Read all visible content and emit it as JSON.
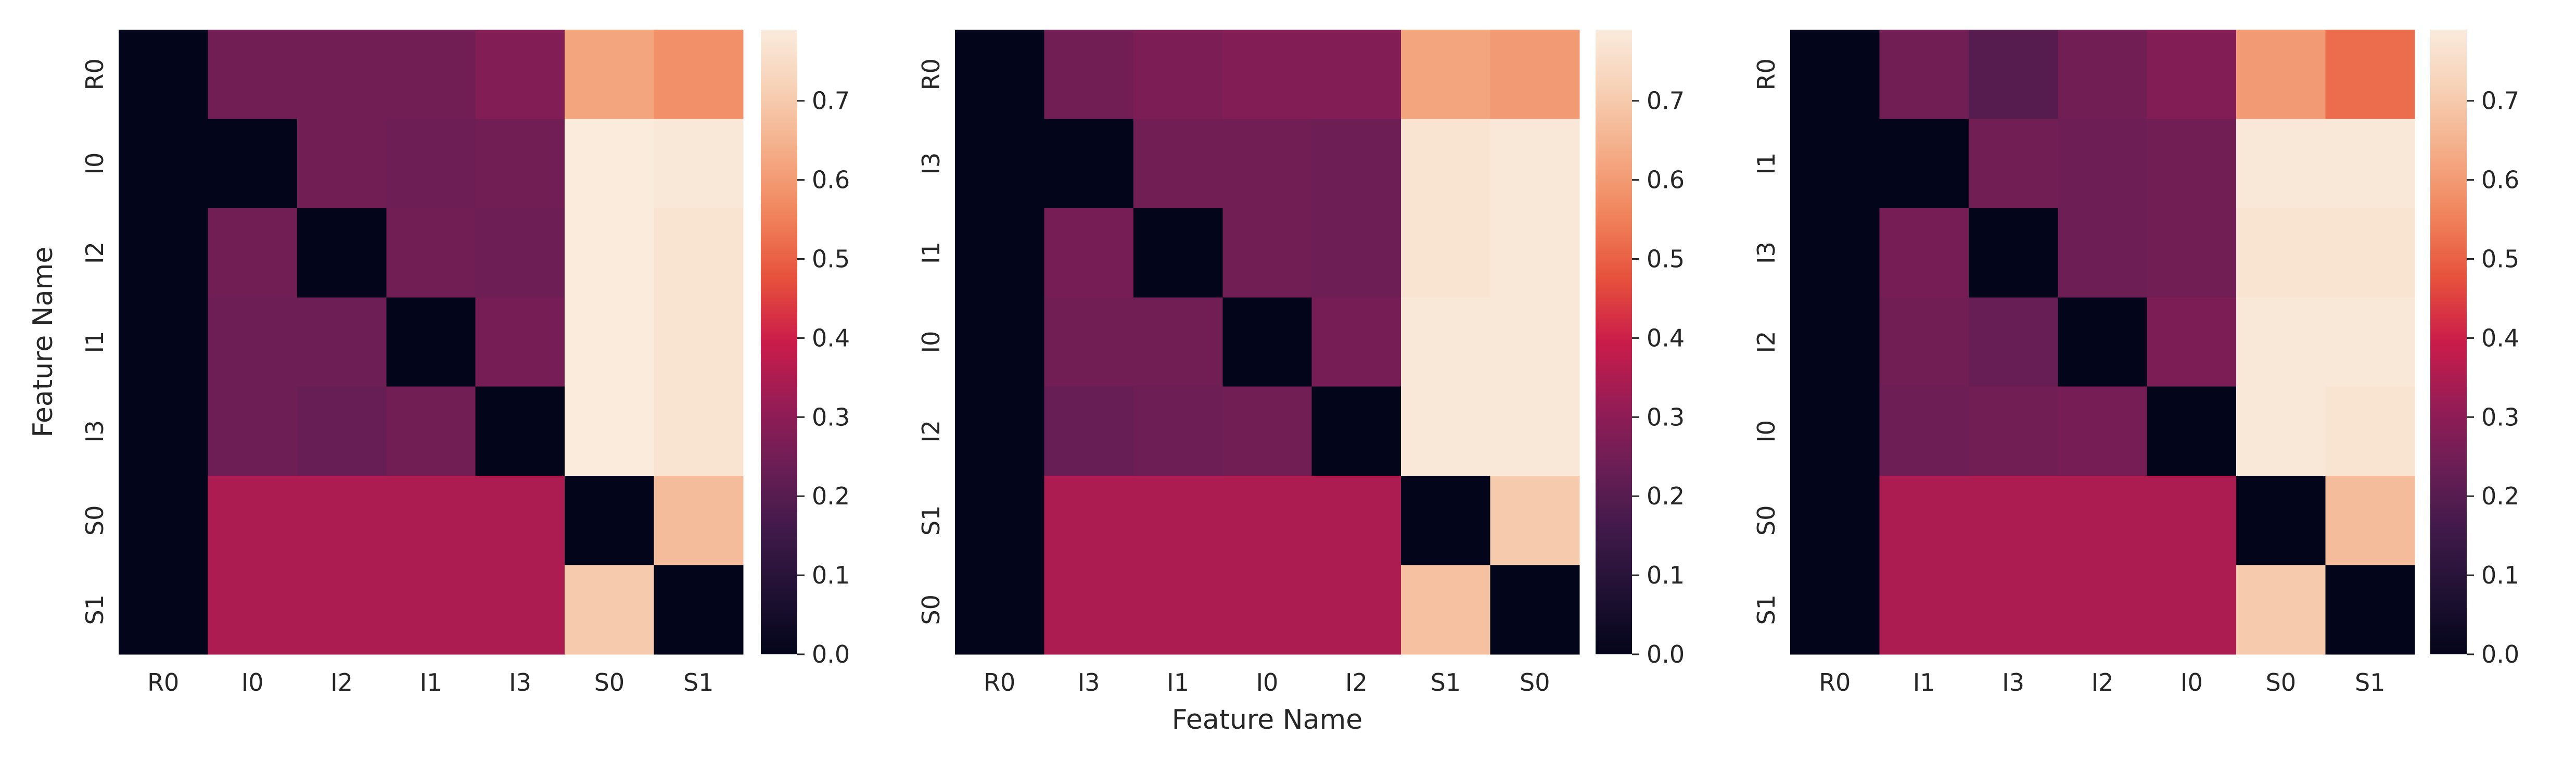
{
  "chart_data": [
    {
      "type": "heatmap",
      "rows": [
        "R0",
        "I0",
        "I2",
        "I1",
        "I3",
        "S0",
        "S1"
      ],
      "columns": [
        "R0",
        "I0",
        "I2",
        "I1",
        "I3",
        "S0",
        "S1"
      ],
      "values": [
        [
          0.0,
          0.25,
          0.25,
          0.25,
          0.28,
          0.62,
          0.58
        ],
        [
          0.0,
          0.0,
          0.25,
          0.24,
          0.25,
          0.79,
          0.78
        ],
        [
          0.0,
          0.25,
          0.0,
          0.25,
          0.24,
          0.79,
          0.77
        ],
        [
          0.0,
          0.24,
          0.24,
          0.0,
          0.26,
          0.79,
          0.77
        ],
        [
          0.0,
          0.24,
          0.23,
          0.25,
          0.0,
          0.79,
          0.77
        ],
        [
          0.0,
          0.35,
          0.35,
          0.35,
          0.35,
          0.0,
          0.67
        ],
        [
          0.0,
          0.35,
          0.35,
          0.35,
          0.35,
          0.7,
          0.0
        ]
      ],
      "xlabel": "",
      "ylabel": "Feature Name",
      "colorbar": {
        "range": [
          0,
          0.79
        ],
        "ticks": [
          "0.0",
          "0.1",
          "0.2",
          "0.3",
          "0.4",
          "0.5",
          "0.6",
          "0.7"
        ]
      }
    },
    {
      "type": "heatmap",
      "rows": [
        "R0",
        "I3",
        "I1",
        "I0",
        "I2",
        "S1",
        "S0"
      ],
      "columns": [
        "R0",
        "I3",
        "I1",
        "I0",
        "I2",
        "S1",
        "S0"
      ],
      "values": [
        [
          0.0,
          0.25,
          0.27,
          0.28,
          0.28,
          0.62,
          0.6
        ],
        [
          0.0,
          0.0,
          0.25,
          0.25,
          0.24,
          0.77,
          0.78
        ],
        [
          0.0,
          0.26,
          0.0,
          0.25,
          0.24,
          0.77,
          0.78
        ],
        [
          0.0,
          0.25,
          0.25,
          0.0,
          0.26,
          0.78,
          0.78
        ],
        [
          0.0,
          0.23,
          0.24,
          0.25,
          0.0,
          0.78,
          0.78
        ],
        [
          0.0,
          0.35,
          0.35,
          0.35,
          0.35,
          0.0,
          0.7
        ],
        [
          0.0,
          0.35,
          0.35,
          0.35,
          0.35,
          0.68,
          0.0
        ]
      ],
      "xlabel": "Feature Name",
      "ylabel": "",
      "colorbar": {
        "range": [
          0,
          0.79
        ],
        "ticks": [
          "0.0",
          "0.1",
          "0.2",
          "0.3",
          "0.4",
          "0.5",
          "0.6",
          "0.7"
        ]
      }
    },
    {
      "type": "heatmap",
      "rows": [
        "R0",
        "I1",
        "I3",
        "I2",
        "I0",
        "S0",
        "S1"
      ],
      "columns": [
        "R0",
        "I1",
        "I3",
        "I2",
        "I0",
        "S0",
        "S1"
      ],
      "values": [
        [
          0.0,
          0.25,
          0.2,
          0.25,
          0.28,
          0.6,
          0.52
        ],
        [
          0.0,
          0.0,
          0.25,
          0.24,
          0.25,
          0.78,
          0.78
        ],
        [
          0.0,
          0.26,
          0.0,
          0.24,
          0.25,
          0.77,
          0.77
        ],
        [
          0.0,
          0.25,
          0.23,
          0.0,
          0.27,
          0.78,
          0.78
        ],
        [
          0.0,
          0.24,
          0.25,
          0.26,
          0.0,
          0.78,
          0.77
        ],
        [
          0.0,
          0.35,
          0.35,
          0.35,
          0.35,
          0.0,
          0.67
        ],
        [
          0.0,
          0.35,
          0.35,
          0.35,
          0.35,
          0.7,
          0.0
        ]
      ],
      "xlabel": "",
      "ylabel": "",
      "colorbar": {
        "range": [
          0,
          0.79
        ],
        "ticks": [
          "0.0",
          "0.1",
          "0.2",
          "0.3",
          "0.4",
          "0.5",
          "0.6",
          "0.7"
        ]
      }
    }
  ]
}
